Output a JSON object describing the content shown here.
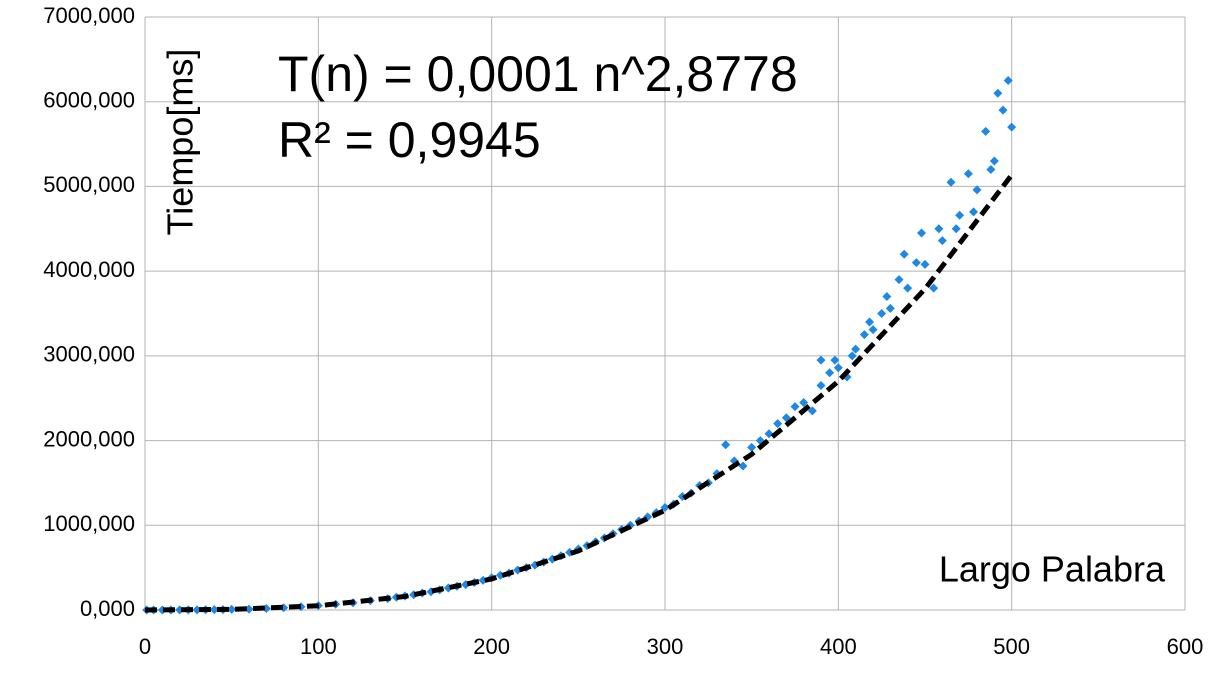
{
  "chart_data": {
    "type": "scatter",
    "annotations": [
      "T(n) = 0,0001 n^2,8778",
      "R² = 0,9945"
    ],
    "x_label": "Largo Palabra",
    "y_label": "Tiempo[ms]",
    "xlim": [
      0,
      600
    ],
    "xticks": [
      0,
      100,
      200,
      300,
      400,
      500,
      600
    ],
    "ylim": [
      0,
      7000
    ],
    "yticks": [
      {
        "value": 0,
        "label": "0,000"
      },
      {
        "value": 1000,
        "label": "1000,000"
      },
      {
        "value": 2000,
        "label": "2000,000"
      },
      {
        "value": 3000,
        "label": "3000,000"
      },
      {
        "value": 4000,
        "label": "4000,000"
      },
      {
        "value": 5000,
        "label": "5000,000"
      },
      {
        "value": 6000,
        "label": "6000,000"
      },
      {
        "value": 7000,
        "label": "7000,000"
      }
    ],
    "grid": true,
    "series": [
      {
        "color": "#1e88e5",
        "x": [
          1,
          5,
          10,
          15,
          20,
          25,
          30,
          35,
          40,
          45,
          50,
          60,
          70,
          80,
          90,
          100,
          110,
          120,
          130,
          140,
          150,
          160,
          170,
          180,
          190,
          200,
          210,
          220,
          230,
          240,
          250,
          260,
          270,
          280,
          290,
          300,
          310,
          320,
          330,
          340,
          350,
          360,
          370,
          380,
          390,
          400,
          410,
          420,
          430,
          440,
          450,
          460,
          470,
          480,
          490,
          500,
          335,
          345,
          355,
          375,
          385,
          390,
          395,
          405,
          415,
          425,
          435,
          445,
          455,
          465,
          475,
          485,
          495,
          498,
          492,
          488,
          478,
          468,
          458,
          448,
          438,
          428,
          418,
          408,
          398,
          365,
          325,
          315,
          305,
          295,
          285,
          275,
          265,
          255,
          245,
          235,
          225,
          215,
          205,
          195,
          185,
          175,
          165,
          155,
          145
        ],
        "values": [
          0,
          0,
          0,
          0,
          1,
          1,
          2,
          3,
          4,
          5,
          7,
          11,
          18,
          27,
          38,
          52,
          68,
          86,
          110,
          135,
          165,
          200,
          238,
          280,
          325,
          380,
          435,
          500,
          565,
          640,
          720,
          805,
          900,
          1000,
          1100,
          1210,
          1340,
          1470,
          1610,
          1760,
          1920,
          2080,
          2270,
          2450,
          2650,
          2860,
          3080,
          3310,
          3560,
          3800,
          4080,
          4360,
          4660,
          4960,
          5300,
          5700,
          1950,
          1700,
          2000,
          2400,
          2350,
          2950,
          2800,
          2750,
          3250,
          3500,
          3900,
          4100,
          3800,
          5050,
          5150,
          5650,
          5900,
          6250,
          6100,
          5200,
          4700,
          4500,
          4500,
          4450,
          4200,
          3700,
          3400,
          3000,
          2950,
          2200,
          1500,
          1380,
          1250,
          1150,
          1050,
          950,
          850,
          760,
          680,
          600,
          530,
          470,
          410,
          350,
          300,
          260,
          215,
          180,
          150
        ]
      }
    ],
    "trendline": {
      "color": "#000000",
      "x": [
        0,
        50,
        100,
        150,
        200,
        250,
        300,
        350,
        400,
        450,
        500
      ],
      "values": [
        0,
        7,
        50,
        160,
        367,
        697,
        1177,
        1838,
        2700,
        3790,
        5135
      ]
    }
  }
}
